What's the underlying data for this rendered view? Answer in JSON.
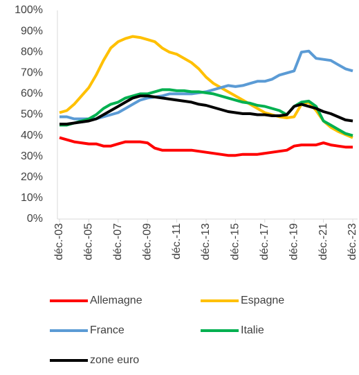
{
  "chart_data": {
    "type": "line",
    "categories": [
      "déc.-03",
      null,
      null,
      null,
      "déc.-05",
      null,
      null,
      null,
      "déc.-07",
      null,
      null,
      null,
      "déc.-09",
      null,
      null,
      null,
      "déc.-11",
      null,
      null,
      null,
      "déc.-13",
      null,
      null,
      null,
      "déc.-15",
      null,
      null,
      null,
      "déc.-17",
      null,
      null,
      null,
      "déc.-19",
      null,
      null,
      null,
      "déc.-21",
      null,
      null,
      null,
      "déc.-23"
    ],
    "ylim": [
      0,
      100
    ],
    "yticks": [
      {
        "value": 0,
        "label": "0%"
      },
      {
        "value": 10,
        "label": "10%"
      },
      {
        "value": 20,
        "label": "20%"
      },
      {
        "value": 30,
        "label": "30%"
      },
      {
        "value": 40,
        "label": "40%"
      },
      {
        "value": 50,
        "label": "50%"
      },
      {
        "value": 60,
        "label": "60%"
      },
      {
        "value": 70,
        "label": "70%"
      },
      {
        "value": 80,
        "label": "80%"
      },
      {
        "value": 90,
        "label": "90%"
      },
      {
        "value": 100,
        "label": "100%"
      }
    ],
    "grid": false,
    "series": [
      {
        "name": "Allemagne",
        "color": "#ff0000",
        "values": [
          39,
          38,
          37,
          36.5,
          36,
          36,
          35,
          35,
          36,
          37,
          37,
          37,
          36.5,
          34,
          33,
          33,
          33,
          33,
          33,
          32.5,
          32,
          31.5,
          31,
          30.5,
          30.5,
          31,
          31,
          31,
          31.5,
          32,
          32.5,
          33,
          35,
          35.5,
          35.5,
          35.5,
          36.5,
          35.5,
          35,
          34.5,
          34.5
        ]
      },
      {
        "name": "Espagne",
        "color": "#ffc000",
        "values": [
          51,
          52,
          55,
          59,
          63,
          69,
          76,
          82,
          85,
          86.5,
          87.5,
          87,
          86,
          85,
          82,
          80,
          79,
          77,
          75,
          72,
          68,
          65,
          63,
          61,
          59,
          57,
          55,
          53,
          51,
          50,
          49,
          48.5,
          49,
          55,
          56,
          52,
          47,
          44,
          42,
          40.5,
          39
        ]
      },
      {
        "name": "France",
        "color": "#5b9bd5",
        "values": [
          49,
          49,
          48,
          48,
          48,
          48,
          49,
          50,
          51,
          53,
          55,
          57,
          58,
          58.5,
          59,
          60,
          60,
          60,
          60,
          60.5,
          61,
          62,
          63,
          64,
          63.5,
          64,
          65,
          66,
          66,
          67,
          69,
          70,
          71,
          80,
          80.5,
          77,
          76.5,
          76,
          74,
          72,
          71
        ]
      },
      {
        "name": "Italie",
        "color": "#00b050",
        "values": [
          45,
          45,
          46,
          47,
          48,
          50,
          53,
          55,
          56,
          58,
          59,
          60,
          60,
          61,
          62,
          62,
          61.5,
          61.5,
          61,
          61,
          60.5,
          60,
          59,
          58,
          57,
          56,
          55.5,
          54.5,
          54,
          53,
          52,
          50,
          54,
          56,
          56.5,
          54,
          47,
          45,
          43,
          41,
          40
        ]
      },
      {
        "name": "zone euro",
        "color": "#000000",
        "values": [
          45.5,
          45.5,
          46,
          46.5,
          47,
          48,
          50,
          52,
          54,
          56,
          58,
          59,
          59,
          58.5,
          58,
          57.5,
          57,
          56.5,
          56,
          55,
          54.5,
          53.5,
          52.5,
          51.5,
          51,
          50.5,
          50.5,
          50,
          50,
          49.5,
          49.5,
          50,
          54,
          55,
          54,
          53,
          51.5,
          50.5,
          49,
          47.5,
          47
        ]
      }
    ]
  }
}
